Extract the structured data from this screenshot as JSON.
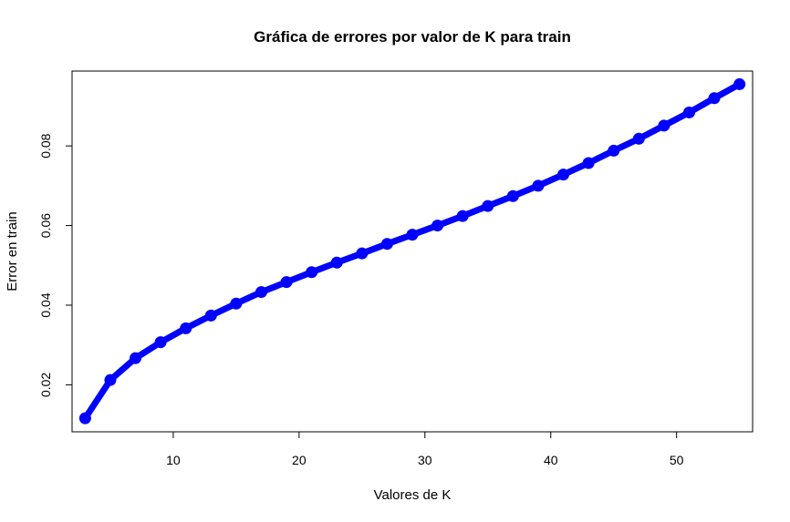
{
  "chart_data": {
    "type": "line",
    "title": "Gráfica de errores por valor de K para train",
    "xlabel": "Valores de K",
    "ylabel": "Error en train",
    "xlim": [
      1.96,
      56.04
    ],
    "ylim": [
      0.0082,
      0.0988
    ],
    "xticks": [
      10,
      20,
      30,
      40,
      50
    ],
    "yticks": [
      0.02,
      0.04,
      0.06,
      0.08
    ],
    "xtick_labels": [
      "10",
      "20",
      "30",
      "40",
      "50"
    ],
    "ytick_labels": [
      "0.02",
      "0.04",
      "0.06",
      "0.08"
    ],
    "grid": false,
    "series": [
      {
        "color": "#0000ff",
        "x": [
          3,
          5,
          7,
          9,
          11,
          13,
          15,
          17,
          19,
          21,
          23,
          25,
          27,
          29,
          31,
          33,
          35,
          37,
          39,
          41,
          43,
          45,
          47,
          49,
          51,
          53,
          55
        ],
        "y": [
          0.0116,
          0.0212,
          0.0267,
          0.0307,
          0.0342,
          0.0374,
          0.0404,
          0.0433,
          0.0458,
          0.0483,
          0.0507,
          0.053,
          0.0554,
          0.0577,
          0.06,
          0.0624,
          0.0649,
          0.0674,
          0.07,
          0.0728,
          0.0757,
          0.0788,
          0.0818,
          0.0851,
          0.0884,
          0.092,
          0.0955
        ]
      }
    ]
  }
}
